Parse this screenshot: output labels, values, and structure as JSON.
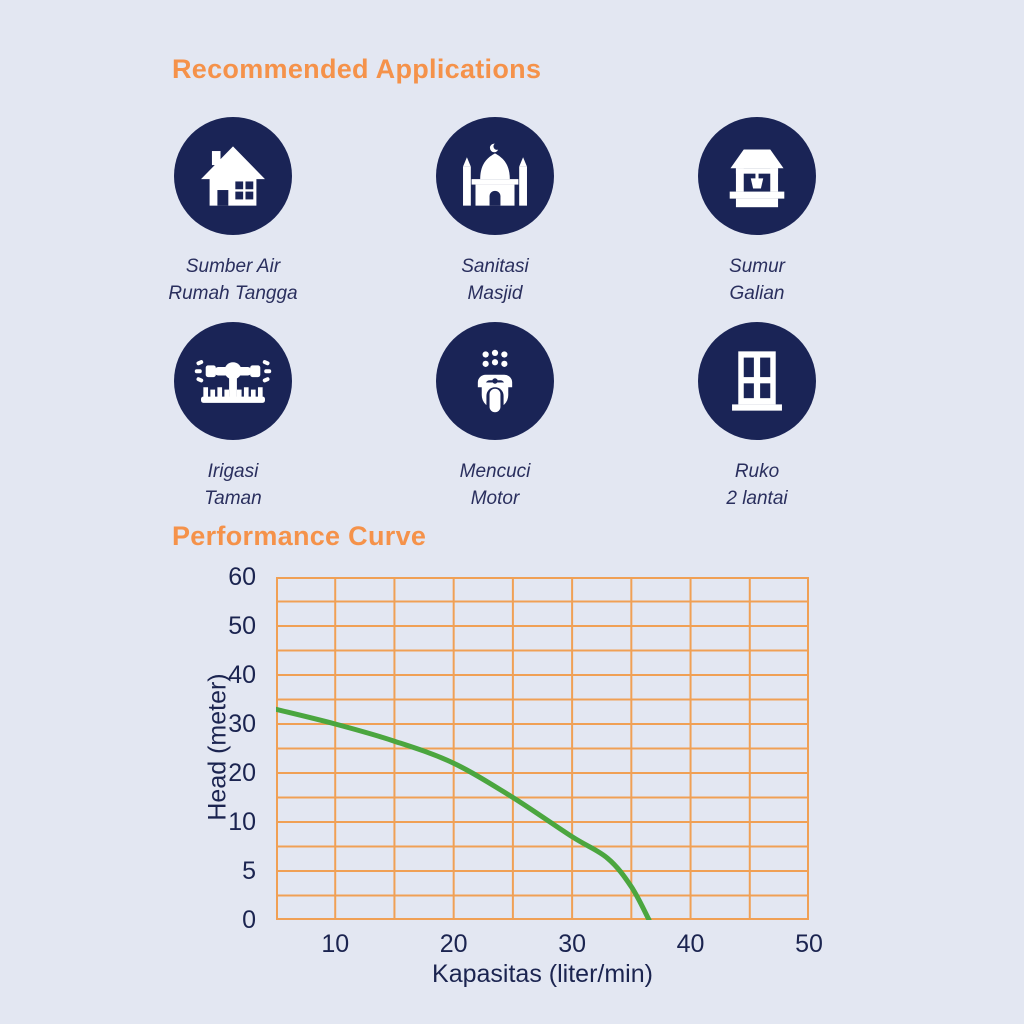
{
  "colors": {
    "background": "#E3E7F2",
    "accent_orange": "#F5924A",
    "icon_circle_navy": "#1A2456",
    "caption_navy": "#2A2F5E",
    "axis_text_navy": "#1B2450",
    "grid_orange": "#F0A055",
    "curve_green": "#4BA63F",
    "icon_glyph_white": "#FFFFFF"
  },
  "recommended": {
    "title": "Recommended Applications",
    "items": [
      {
        "icon": "house-icon",
        "line1": "Sumber Air",
        "line2": "Rumah Tangga"
      },
      {
        "icon": "mosque-icon",
        "line1": "Sanitasi",
        "line2": "Masjid"
      },
      {
        "icon": "well-icon",
        "line1": "Sumur",
        "line2": "Galian"
      },
      {
        "icon": "sprinkler-icon",
        "line1": "Irigasi",
        "line2": "Taman"
      },
      {
        "icon": "scooter-icon",
        "line1": "Mencuci",
        "line2": "Motor"
      },
      {
        "icon": "building-window-icon",
        "line1": "Ruko",
        "line2": "2 lantai"
      }
    ]
  },
  "performance": {
    "title": "Performance Curve",
    "chart_data": {
      "type": "line",
      "title": "Performance Curve",
      "xlabel": "Kapasitas (liter/min)",
      "ylabel": "Head (meter)",
      "x_ticks": [
        10,
        20,
        30,
        40,
        50
      ],
      "y_ticks": [
        60,
        50,
        40,
        30,
        20,
        10,
        5,
        0
      ],
      "x_range": [
        5,
        50
      ],
      "x_gridline_step": 5,
      "y_gridline_values": [
        60,
        55,
        50,
        45,
        40,
        35,
        30,
        25,
        20,
        15,
        10,
        7.5,
        5,
        2.5,
        0
      ],
      "grid": true,
      "legend_position": "none",
      "series": [
        {
          "name": "head-vs-capacity",
          "points": [
            [
              5,
              33
            ],
            [
              10,
              30
            ],
            [
              15,
              26.5
            ],
            [
              20,
              22
            ],
            [
              25,
              15
            ],
            [
              30,
              8.5
            ],
            [
              33,
              6.3
            ],
            [
              35,
              3.4
            ],
            [
              36.5,
              0
            ]
          ]
        }
      ]
    }
  }
}
